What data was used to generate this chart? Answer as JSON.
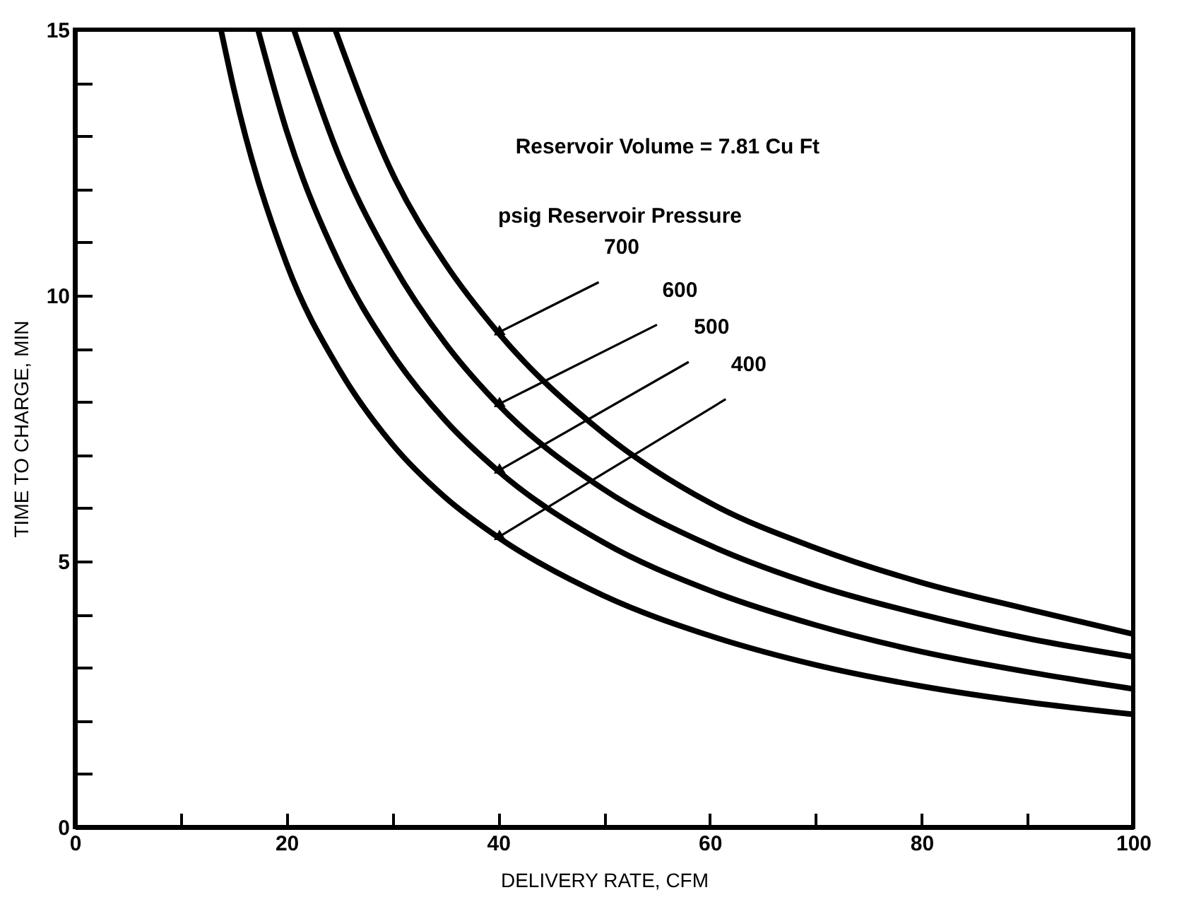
{
  "chart_data": {
    "type": "line",
    "xlabel": "DELIVERY RATE, CFM",
    "ylabel": "TIME TO CHARGE, MIN",
    "legend_title": "psig  Reservoir Pressure",
    "annotations": [
      "Reservoir Volume = 7.81 Cu  Ft"
    ],
    "xlim": [
      0,
      100
    ],
    "xticks": [
      0,
      {
        "value": 10,
        "label": null
      },
      20,
      {
        "value": 30,
        "label": null
      },
      40,
      {
        "value": 50,
        "label": null
      },
      60,
      {
        "value": 70,
        "label": null
      },
      80,
      {
        "value": 90,
        "label": null
      },
      100
    ],
    "ylim": [
      0,
      15
    ],
    "yticks": [
      0,
      {
        "value": 1,
        "label": null
      },
      {
        "value": 2,
        "label": null
      },
      {
        "value": 3,
        "label": null
      },
      {
        "value": 4,
        "label": null
      },
      5,
      {
        "value": 6,
        "label": null
      },
      {
        "value": 7,
        "label": null
      },
      {
        "value": 8,
        "label": null
      },
      {
        "value": 9,
        "label": null
      },
      10,
      {
        "value": 11,
        "label": null
      },
      {
        "value": 12,
        "label": null
      },
      {
        "value": 13,
        "label": null
      },
      {
        "value": 14,
        "label": null
      },
      15
    ],
    "grid": false,
    "legend": false,
    "marker": "none",
    "line_style": "solid",
    "series": [
      {
        "name": "700",
        "color": "#000000",
        "x": [
          24.6,
          30,
          35,
          40,
          50,
          60,
          70,
          80,
          90,
          100
        ],
        "values": [
          15,
          12.3,
          10.6,
          9.3,
          7.4,
          6.1,
          5.25,
          4.6,
          4.1,
          3.63
        ]
      },
      {
        "name": "600",
        "color": "#000000",
        "x": [
          20.7,
          25,
          30,
          35,
          40,
          50,
          60,
          70,
          80,
          90,
          100
        ],
        "values": [
          15,
          12.6,
          10.6,
          9.1,
          7.95,
          6.35,
          5.3,
          4.55,
          4.0,
          3.55,
          3.2
        ]
      },
      {
        "name": "500",
        "color": "#000000",
        "x": [
          17.3,
          20,
          25,
          30,
          35,
          40,
          50,
          60,
          70,
          80,
          90,
          100
        ],
        "values": [
          15,
          13.1,
          10.6,
          8.9,
          7.65,
          6.7,
          5.35,
          4.45,
          3.8,
          3.3,
          2.92,
          2.6
        ]
      },
      {
        "name": "400",
        "color": "#000000",
        "x": [
          13.8,
          15,
          20,
          25,
          30,
          35,
          40,
          50,
          60,
          70,
          80,
          90,
          100
        ],
        "values": [
          15,
          13.9,
          10.6,
          8.6,
          7.2,
          6.2,
          5.45,
          4.35,
          3.6,
          3.05,
          2.65,
          2.35,
          2.12
        ]
      }
    ]
  }
}
